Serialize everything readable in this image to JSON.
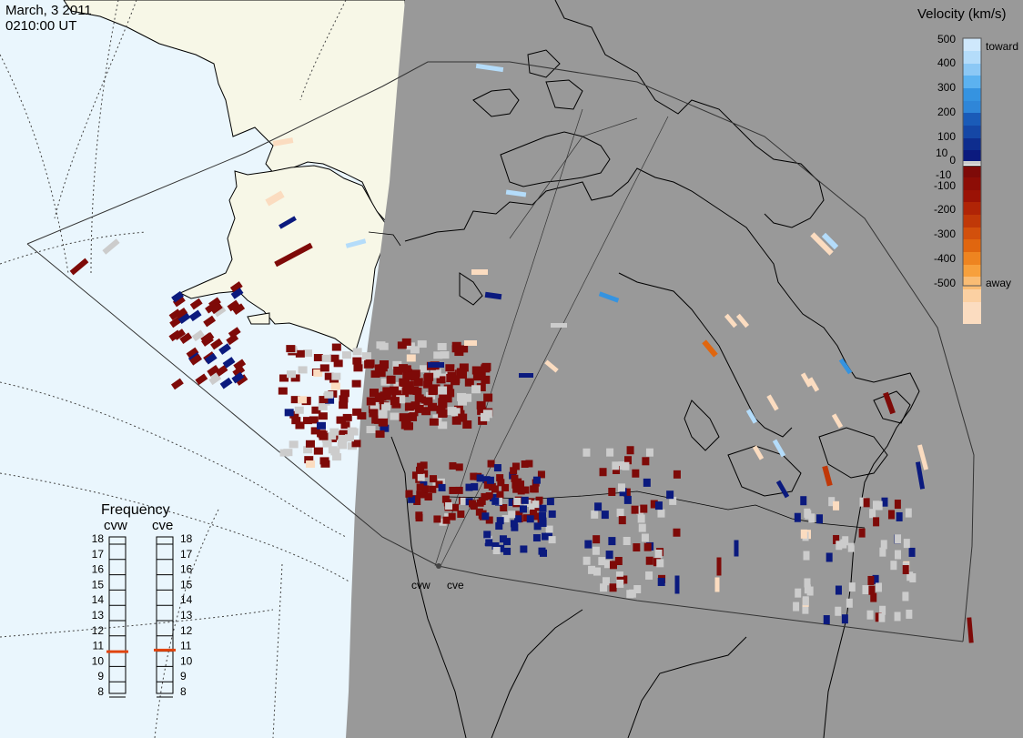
{
  "header": {
    "date": "March, 3 2011",
    "time": "0210:00 UT"
  },
  "colors": {
    "ocean": "#eaf6fd",
    "land": "#f7f7e7",
    "night": "#999999",
    "ground_scatter": "#cccccc"
  },
  "colorbar": {
    "title": "Velocity (km/s)",
    "toward_label": "toward",
    "away_label": "away",
    "ticks": [
      "500",
      "400",
      "300",
      "200",
      "100",
      "10",
      "0",
      "-10",
      "-100",
      "-200",
      "-300",
      "-400",
      "-500"
    ],
    "scale": [
      {
        "value": 500,
        "color": "#cfe8fc"
      },
      {
        "value": 400,
        "color": "#9fd2f8"
      },
      {
        "value": 300,
        "color": "#5cb2f0"
      },
      {
        "value": 200,
        "color": "#2f86d8"
      },
      {
        "value": 100,
        "color": "#1547a6"
      },
      {
        "value": 10,
        "color": "#0b1a7e"
      },
      {
        "value": 0,
        "color": "#cccccc"
      },
      {
        "value": -10,
        "color": "#7e0a08"
      },
      {
        "value": -100,
        "color": "#9b1205"
      },
      {
        "value": -200,
        "color": "#c03808"
      },
      {
        "value": -300,
        "color": "#e0660f"
      },
      {
        "value": -400,
        "color": "#f7a03c"
      },
      {
        "value": -500,
        "color": "#fbdcc0"
      }
    ]
  },
  "frequency": {
    "title": "Frequency",
    "radars": [
      {
        "name": "cvw",
        "value": 11.0
      },
      {
        "name": "cve",
        "value": 11.1
      }
    ],
    "scale": [
      "18",
      "17",
      "16",
      "15",
      "14",
      "13",
      "12",
      "11",
      "10",
      "9",
      "8"
    ],
    "indicator_color": "#e0440e"
  },
  "stations": [
    {
      "name": "cvw"
    },
    {
      "name": "cve"
    }
  ]
}
